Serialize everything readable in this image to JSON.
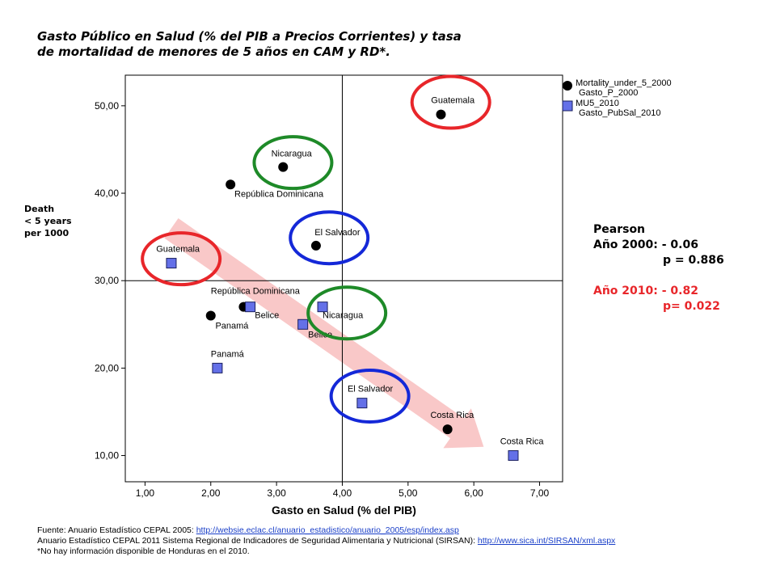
{
  "title_lines": [
    "Gasto Público en Salud (% del PIB a Precios Corrientes) y  tasa",
    "de mortalidad de menores de 5 años en CAM y RD*."
  ],
  "y_axis_label_lines": [
    "Death",
    "< 5 years",
    "per 1000"
  ],
  "pearson": {
    "heading": "Pearson",
    "year2000": "Año 2000: - 0.06",
    "p2000": "p = 0.886",
    "year2010": "Año 2010: - 0.82",
    "p2010": "p= 0.022",
    "color_2010": "#e8262a"
  },
  "source": {
    "line1_label": "Fuente",
    "line1_text": ": Anuario Estadístico CEPAL 2005: ",
    "line1_link": "http://websie.eclac.cl/anuario_estadistico/anuario_2005/esp/index.asp",
    "line2_text": "Anuario Estadístico CEPAL  2011 Sistema Regional de Indicadores de Seguridad Alimentaria y Nutricional (SIRSAN): ",
    "line2_link": "http://www.sica.int/SIRSAN/xml.aspx",
    "line3_text": "*No hay información disponible de Honduras en el 2010."
  },
  "chart_data": {
    "type": "scatter",
    "xlabel": "Gasto en Salud (% del PIB)",
    "xlim": [
      0.7,
      7.35
    ],
    "ylim": [
      7.0,
      53.5
    ],
    "x_ticks": [
      1,
      2,
      3,
      4,
      5,
      6,
      7
    ],
    "x_tick_labels": [
      "1,00",
      "2,00",
      "3,00",
      "4,00",
      "5,00",
      "6,00",
      "7,00"
    ],
    "y_ticks": [
      10,
      20,
      30,
      40,
      50
    ],
    "y_tick_labels": [
      "10,00",
      "20,00",
      "30,00",
      "40,00",
      "50,00"
    ],
    "reference_lines": {
      "x": 4.0,
      "y": 30.0
    },
    "grid": false,
    "legend_position": "top-right",
    "legend": [
      {
        "line1": "Mortality_under_5_2000",
        "line2": "Gasto_P_2000",
        "marker": "circle"
      },
      {
        "line1": "MU5_2010",
        "line2": "Gasto_PubSal_2010",
        "marker": "square"
      }
    ],
    "colors": {
      "circle": "#000000",
      "square": "#6470e8",
      "square_stroke": "#1a1f5e",
      "arrow": "#f9c8c8",
      "red": "#e8262a",
      "green": "#1e8a28",
      "blue": "#1428d8"
    },
    "series": [
      {
        "name": "Mortality_under_5_2000",
        "marker": "circle",
        "points": [
          {
            "label": "Guatemala",
            "x": 5.5,
            "y": 49.0
          },
          {
            "label": "Nicaragua",
            "x": 3.1,
            "y": 43.0
          },
          {
            "label": "República Dominicana",
            "x": 2.3,
            "y": 41.0
          },
          {
            "label": "El Salvador",
            "x": 3.6,
            "y": 34.0
          },
          {
            "label": "",
            "x": 2.5,
            "y": 27.0
          },
          {
            "label": "Panamá",
            "x": 2.0,
            "y": 26.0
          },
          {
            "label": "Costa Rica",
            "x": 5.6,
            "y": 13.0
          }
        ]
      },
      {
        "name": "MU5_2010",
        "marker": "square",
        "points": [
          {
            "label": "Guatemala",
            "x": 1.4,
            "y": 32.0
          },
          {
            "label": "República Dominicana",
            "x": 2.6,
            "y": 27.0
          },
          {
            "label": "Belice",
            "x": 3.4,
            "y": 25.0
          },
          {
            "label": "Nicaragua",
            "x": 3.7,
            "y": 27.0
          },
          {
            "label": "Panamá",
            "x": 2.1,
            "y": 20.0
          },
          {
            "label": "El Salvador",
            "x": 4.3,
            "y": 16.0
          },
          {
            "label": "Costa Rica",
            "x": 6.6,
            "y": 10.0
          }
        ]
      }
    ],
    "point_labels": [
      {
        "text": "Guatemala",
        "x": 5.35,
        "y": 50.3
      },
      {
        "text": "Nicaragua",
        "x": 2.92,
        "y": 44.2
      },
      {
        "text": "República Dominicana",
        "x": 2.36,
        "y": 39.6
      },
      {
        "text": "El Salvador",
        "x": 3.58,
        "y": 35.2
      },
      {
        "text": "Guatemala",
        "x": 1.17,
        "y": 33.3
      },
      {
        "text": "República Dominicana",
        "x": 2.0,
        "y": 28.5
      },
      {
        "text": "Belice",
        "x": 2.67,
        "y": 25.7
      },
      {
        "text": "Panamá",
        "x": 2.07,
        "y": 24.5
      },
      {
        "text": "Nicaragua",
        "x": 3.7,
        "y": 25.7
      },
      {
        "text": "Belice",
        "x": 3.48,
        "y": 23.5
      },
      {
        "text": "Panamá",
        "x": 2.0,
        "y": 21.3
      },
      {
        "text": "El Salvador",
        "x": 4.08,
        "y": 17.3
      },
      {
        "text": "Costa Rica",
        "x": 5.34,
        "y": 14.3
      },
      {
        "text": "Costa Rica",
        "x": 6.4,
        "y": 11.3
      }
    ],
    "annotation_circles": [
      {
        "x": 5.65,
        "y": 50.4,
        "color": "red"
      },
      {
        "x": 1.55,
        "y": 32.5,
        "color": "red"
      },
      {
        "x": 3.25,
        "y": 43.5,
        "color": "green"
      },
      {
        "x": 4.07,
        "y": 26.3,
        "color": "green"
      },
      {
        "x": 3.8,
        "y": 34.9,
        "color": "blue"
      },
      {
        "x": 4.42,
        "y": 16.8,
        "color": "blue"
      }
    ],
    "trend_arrow": {
      "x_start": 1.4,
      "y_start": 36.0,
      "x_end": 6.15,
      "y_end": 11.0
    }
  }
}
